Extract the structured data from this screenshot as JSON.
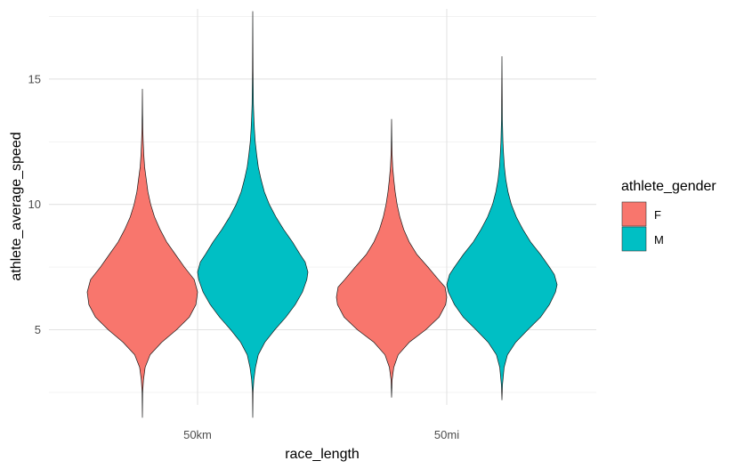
{
  "chart_data": {
    "type": "violin",
    "xlabel": "race_length",
    "ylabel": "athlete_average_speed",
    "categories": [
      "50km",
      "50mi"
    ],
    "ylim": [
      2.0,
      17.8
    ],
    "y_ticks": [
      5,
      10,
      15
    ],
    "grid": true,
    "legend": {
      "title": "athlete_gender",
      "placement": "right",
      "entries": [
        {
          "label": "F",
          "color": "#F8766D"
        },
        {
          "label": "M",
          "color": "#00BFC4"
        }
      ]
    },
    "series": [
      {
        "name": "F",
        "color": "#F8766D",
        "violins": [
          {
            "category": "50km",
            "min": 1.5,
            "max": 14.6,
            "profile": [
              [
                1.5,
                0.0
              ],
              [
                2.5,
                0.005
              ],
              [
                3.0,
                0.02
              ],
              [
                3.5,
                0.05
              ],
              [
                4.0,
                0.14
              ],
              [
                4.5,
                0.35
              ],
              [
                5.0,
                0.62
              ],
              [
                5.5,
                0.85
              ],
              [
                6.0,
                0.97
              ],
              [
                6.5,
                1.0
              ],
              [
                7.0,
                0.94
              ],
              [
                7.5,
                0.76
              ],
              [
                8.0,
                0.6
              ],
              [
                8.5,
                0.44
              ],
              [
                9.0,
                0.32
              ],
              [
                9.5,
                0.22
              ],
              [
                10.0,
                0.15
              ],
              [
                10.5,
                0.1
              ],
              [
                11.0,
                0.07
              ],
              [
                11.5,
                0.04
              ],
              [
                12.0,
                0.025
              ],
              [
                12.5,
                0.015
              ],
              [
                13.0,
                0.008
              ],
              [
                13.6,
                0.004
              ],
              [
                14.6,
                0.0
              ]
            ]
          },
          {
            "category": "50mi",
            "min": 2.3,
            "max": 13.4,
            "profile": [
              [
                2.3,
                0.0
              ],
              [
                3.0,
                0.01
              ],
              [
                3.5,
                0.04
              ],
              [
                4.0,
                0.12
              ],
              [
                4.5,
                0.32
              ],
              [
                5.0,
                0.62
              ],
              [
                5.5,
                0.86
              ],
              [
                6.0,
                0.98
              ],
              [
                6.3,
                1.0
              ],
              [
                6.7,
                0.97
              ],
              [
                7.0,
                0.85
              ],
              [
                7.5,
                0.66
              ],
              [
                8.0,
                0.46
              ],
              [
                8.5,
                0.32
              ],
              [
                9.0,
                0.22
              ],
              [
                9.5,
                0.15
              ],
              [
                10.0,
                0.1
              ],
              [
                10.5,
                0.065
              ],
              [
                11.0,
                0.04
              ],
              [
                11.5,
                0.02
              ],
              [
                12.0,
                0.01
              ],
              [
                12.5,
                0.005
              ],
              [
                13.4,
                0.0
              ]
            ]
          }
        ]
      },
      {
        "name": "M",
        "color": "#00BFC4",
        "violins": [
          {
            "category": "50km",
            "min": 1.5,
            "max": 17.7,
            "profile": [
              [
                1.5,
                0.0
              ],
              [
                2.5,
                0.005
              ],
              [
                3.0,
                0.02
              ],
              [
                3.5,
                0.05
              ],
              [
                4.0,
                0.1
              ],
              [
                4.5,
                0.22
              ],
              [
                5.0,
                0.4
              ],
              [
                5.5,
                0.6
              ],
              [
                6.0,
                0.77
              ],
              [
                6.5,
                0.9
              ],
              [
                7.0,
                0.98
              ],
              [
                7.3,
                1.0
              ],
              [
                7.7,
                0.95
              ],
              [
                8.0,
                0.86
              ],
              [
                8.5,
                0.72
              ],
              [
                9.0,
                0.56
              ],
              [
                9.5,
                0.42
              ],
              [
                10.0,
                0.3
              ],
              [
                10.5,
                0.21
              ],
              [
                11.0,
                0.15
              ],
              [
                11.5,
                0.1
              ],
              [
                12.0,
                0.07
              ],
              [
                12.5,
                0.045
              ],
              [
                13.0,
                0.03
              ],
              [
                13.5,
                0.02
              ],
              [
                14.0,
                0.012
              ],
              [
                15.3,
                0.005
              ],
              [
                17.7,
                0.0
              ]
            ]
          },
          {
            "category": "50mi",
            "min": 2.2,
            "max": 15.9,
            "profile": [
              [
                2.2,
                0.0
              ],
              [
                2.8,
                0.01
              ],
              [
                3.5,
                0.04
              ],
              [
                4.0,
                0.1
              ],
              [
                4.5,
                0.25
              ],
              [
                5.0,
                0.47
              ],
              [
                5.5,
                0.7
              ],
              [
                6.0,
                0.86
              ],
              [
                6.5,
                0.97
              ],
              [
                6.8,
                1.0
              ],
              [
                7.2,
                0.95
              ],
              [
                7.5,
                0.86
              ],
              [
                8.0,
                0.7
              ],
              [
                8.5,
                0.52
              ],
              [
                9.0,
                0.38
              ],
              [
                9.5,
                0.26
              ],
              [
                10.0,
                0.17
              ],
              [
                10.5,
                0.11
              ],
              [
                11.0,
                0.07
              ],
              [
                11.5,
                0.045
              ],
              [
                12.0,
                0.03
              ],
              [
                12.5,
                0.018
              ],
              [
                13.4,
                0.008
              ],
              [
                15.9,
                0.0
              ]
            ]
          }
        ]
      }
    ]
  }
}
